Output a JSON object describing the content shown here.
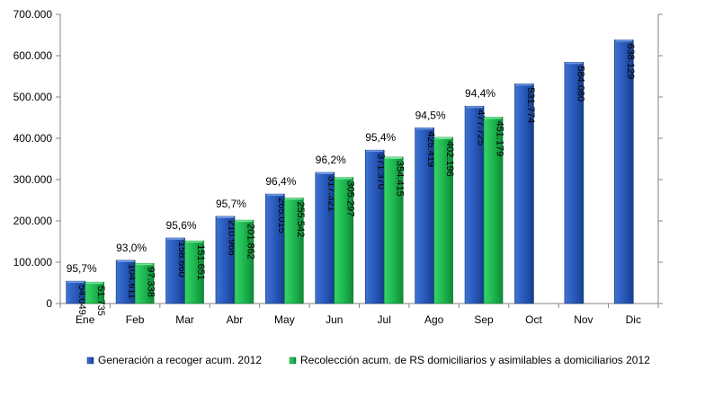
{
  "chart_data": {
    "type": "bar",
    "categories": [
      "Ene",
      "Feb",
      "Mar",
      "Abr",
      "May",
      "Jun",
      "Jul",
      "Ago",
      "Sep",
      "Oct",
      "Nov",
      "Dic"
    ],
    "series": [
      {
        "name": "Generación a recoger acum. 2012",
        "color": "#1f4fa8",
        "values": [
          54049,
          104611,
          158660,
          210966,
          265015,
          317321,
          371370,
          425419,
          477725,
          531774,
          584080,
          638129
        ],
        "value_labels": [
          "54.049",
          "104.611",
          "158.660",
          "210.966",
          "265.015",
          "317.321",
          "371.370",
          "425.419",
          "477.725",
          "531.774",
          "584.080",
          "638.129"
        ]
      },
      {
        "name": "Recolección acum. de RS domiciliarios y asimilables a domiciliarios 2012",
        "color": "#18b04a",
        "values": [
          51735,
          97338,
          151651,
          201862,
          255542,
          305297,
          354415,
          402196,
          451179,
          null,
          null,
          null
        ],
        "value_labels": [
          "51.735",
          "97.338",
          "151.651",
          "201.862",
          "255.542",
          "305.297",
          "354.415",
          "402.196",
          "451.179",
          null,
          null,
          null
        ]
      }
    ],
    "annotations": [
      "95,7%",
      "93,0%",
      "95,6%",
      "95,7%",
      "96,4%",
      "96,2%",
      "95,4%",
      "94,5%",
      "94,4%",
      null,
      null,
      null
    ],
    "y_ticks": [
      0,
      100000,
      200000,
      300000,
      400000,
      500000,
      600000,
      700000
    ],
    "y_tick_labels": [
      "0",
      "100.000",
      "200.000",
      "300.000",
      "400.000",
      "500.000",
      "600.000",
      "700.000"
    ],
    "ylim": [
      0,
      700000
    ],
    "title": "",
    "xlabel": "",
    "ylabel": "",
    "legend_position": "bottom",
    "grid": false
  }
}
